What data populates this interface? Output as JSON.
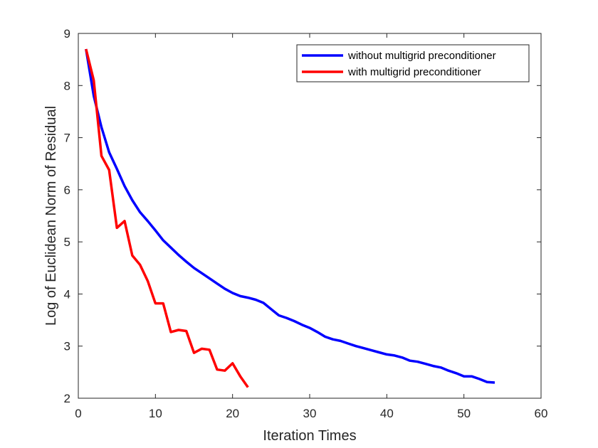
{
  "chart_data": {
    "type": "line",
    "xlabel": "Iteration Times",
    "ylabel": "Log of Euclidean Norm of Residual",
    "xlim": [
      0,
      60
    ],
    "ylim": [
      2,
      9
    ],
    "xticks": [
      0,
      10,
      20,
      30,
      40,
      50,
      60
    ],
    "yticks": [
      2,
      3,
      4,
      5,
      6,
      7,
      8,
      9
    ],
    "grid": false,
    "legend_position": "top-right",
    "series": [
      {
        "name": "without multigrid preconditioner",
        "color": "#0000ff",
        "x": [
          1,
          2,
          3,
          4,
          5,
          6,
          7,
          8,
          9,
          10,
          11,
          12,
          13,
          14,
          15,
          16,
          17,
          18,
          19,
          20,
          21,
          22,
          23,
          24,
          25,
          26,
          27,
          28,
          29,
          30,
          31,
          32,
          33,
          34,
          35,
          36,
          37,
          38,
          39,
          40,
          41,
          42,
          43,
          44,
          45,
          46,
          47,
          48,
          49,
          50,
          51,
          52,
          53,
          54
        ],
        "y": [
          8.7,
          7.8,
          7.2,
          6.72,
          6.4,
          6.07,
          5.8,
          5.57,
          5.4,
          5.22,
          5.03,
          4.89,
          4.75,
          4.62,
          4.5,
          4.4,
          4.3,
          4.2,
          4.1,
          4.02,
          3.96,
          3.93,
          3.89,
          3.83,
          3.71,
          3.59,
          3.54,
          3.48,
          3.41,
          3.35,
          3.27,
          3.18,
          3.13,
          3.1,
          3.05,
          3.0,
          2.96,
          2.92,
          2.88,
          2.84,
          2.82,
          2.78,
          2.72,
          2.7,
          2.66,
          2.62,
          2.59,
          2.53,
          2.48,
          2.42,
          2.42,
          2.37,
          2.31,
          2.3
        ]
      },
      {
        "name": "with multigrid preconditioner",
        "color": "#ff0000",
        "x": [
          1,
          2,
          3,
          4,
          5,
          6,
          7,
          8,
          9,
          10,
          11,
          12,
          13,
          14,
          15,
          16,
          17,
          18,
          19,
          20,
          21,
          22
        ],
        "y": [
          8.7,
          8.1,
          6.65,
          6.38,
          5.27,
          5.4,
          4.74,
          4.56,
          4.25,
          3.82,
          3.82,
          3.27,
          3.31,
          3.29,
          2.87,
          2.95,
          2.93,
          2.55,
          2.53,
          2.67,
          2.42,
          2.21
        ]
      }
    ]
  }
}
